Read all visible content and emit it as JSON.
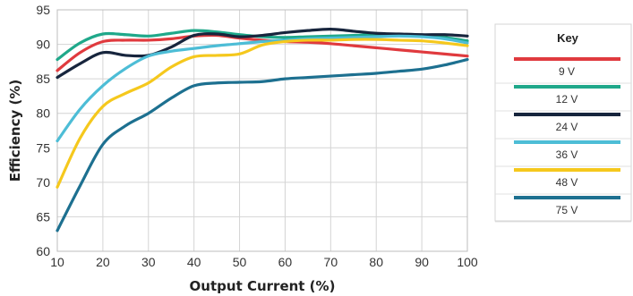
{
  "chart_data": {
    "type": "line",
    "xlabel": "Output Current (%)",
    "ylabel": "Efficiency (%)",
    "xlim": [
      10,
      100
    ],
    "ylim": [
      60,
      95
    ],
    "xticks": [
      10,
      20,
      30,
      40,
      50,
      60,
      70,
      80,
      90,
      100
    ],
    "yticks": [
      60,
      65,
      70,
      75,
      80,
      85,
      90,
      95
    ],
    "grid": true,
    "legend": {
      "title": "Key",
      "placement": "right"
    },
    "series": [
      {
        "name": "9 V",
        "color": "#e03a3e",
        "x": [
          10,
          15,
          20,
          25,
          30,
          35,
          40,
          45,
          50,
          55,
          60,
          65,
          70,
          75,
          80,
          85,
          90,
          95,
          100
        ],
        "y": [
          86.2,
          88.8,
          90.4,
          90.6,
          90.6,
          90.8,
          91.2,
          91.3,
          90.9,
          90.6,
          90.4,
          90.3,
          90.1,
          89.8,
          89.5,
          89.2,
          88.9,
          88.6,
          88.3
        ]
      },
      {
        "name": "12 V",
        "color": "#1fa88a",
        "x": [
          10,
          15,
          20,
          25,
          30,
          35,
          40,
          45,
          50,
          55,
          60,
          65,
          70,
          75,
          80,
          85,
          90,
          95,
          100
        ],
        "y": [
          87.8,
          90.2,
          91.5,
          91.4,
          91.2,
          91.6,
          92.0,
          91.8,
          91.4,
          91.1,
          91.0,
          91.1,
          91.2,
          91.3,
          91.4,
          91.4,
          91.3,
          91.0,
          90.5
        ]
      },
      {
        "name": "24 V",
        "color": "#17253d",
        "x": [
          10,
          15,
          20,
          25,
          30,
          35,
          40,
          45,
          50,
          55,
          60,
          65,
          70,
          75,
          80,
          85,
          90,
          95,
          100
        ],
        "y": [
          85.2,
          87.2,
          88.8,
          88.4,
          88.4,
          89.6,
          91.3,
          91.5,
          91.1,
          91.3,
          91.7,
          92.0,
          92.2,
          91.9,
          91.6,
          91.5,
          91.4,
          91.4,
          91.2
        ]
      },
      {
        "name": "36 V",
        "color": "#4dbdd6",
        "x": [
          10,
          15,
          20,
          25,
          30,
          35,
          40,
          45,
          50,
          55,
          60,
          65,
          70,
          75,
          80,
          85,
          90,
          95,
          100
        ],
        "y": [
          76.0,
          80.6,
          84.0,
          86.5,
          88.3,
          89.0,
          89.4,
          89.8,
          90.1,
          90.4,
          90.6,
          90.8,
          90.9,
          91.0,
          91.1,
          91.2,
          91.1,
          90.8,
          90.2
        ]
      },
      {
        "name": "48 V",
        "color": "#f5c81d",
        "x": [
          10,
          15,
          20,
          25,
          30,
          35,
          40,
          45,
          50,
          55,
          60,
          65,
          70,
          75,
          80,
          85,
          90,
          95,
          100
        ],
        "y": [
          69.3,
          76.4,
          81.0,
          82.9,
          84.4,
          86.7,
          88.2,
          88.4,
          88.6,
          89.9,
          90.4,
          90.6,
          90.6,
          90.7,
          90.7,
          90.6,
          90.5,
          90.2,
          89.8
        ]
      },
      {
        "name": "75 V",
        "color": "#1d7090",
        "x": [
          10,
          15,
          20,
          25,
          30,
          35,
          40,
          45,
          50,
          55,
          60,
          65,
          70,
          75,
          80,
          85,
          90,
          95,
          100
        ],
        "y": [
          63.0,
          69.5,
          75.5,
          78.2,
          80.0,
          82.2,
          84.0,
          84.4,
          84.5,
          84.6,
          85.0,
          85.2,
          85.4,
          85.6,
          85.8,
          86.1,
          86.4,
          87.0,
          87.8
        ]
      }
    ]
  }
}
